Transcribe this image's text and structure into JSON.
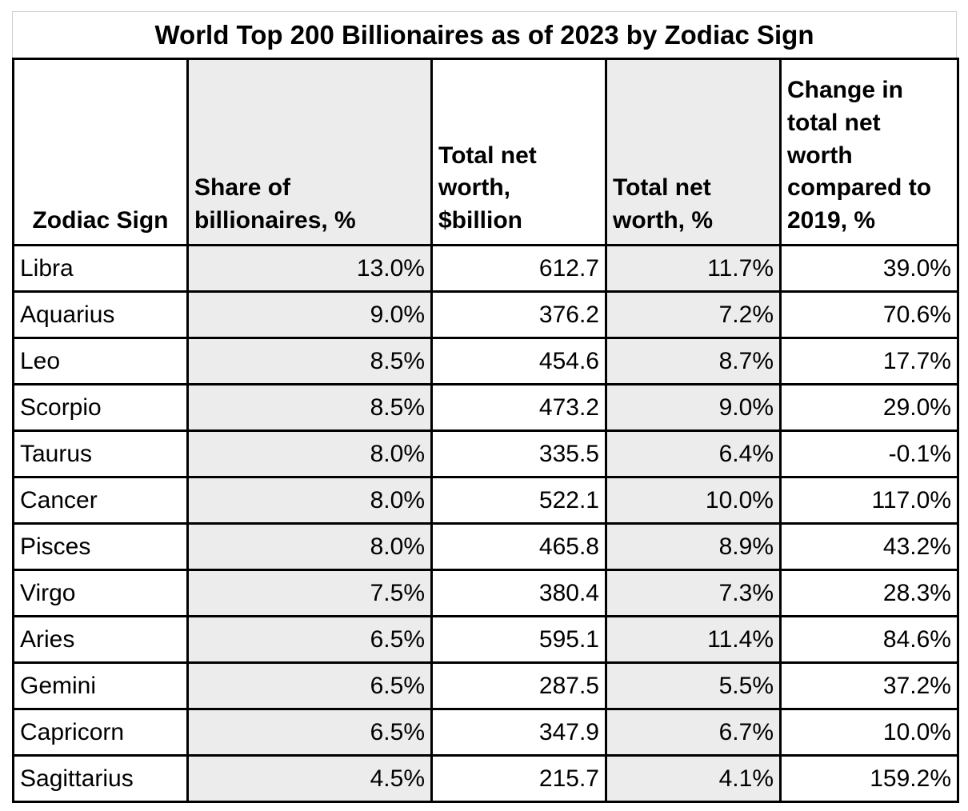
{
  "title": "World Top 200 Billionaires as of 2023 by Zodiac Sign",
  "colors": {
    "shaded_column_background": "#ececec",
    "table_border": "#000000",
    "caption_border": "#cfcfcf",
    "text": "#000000"
  },
  "table": {
    "columns": [
      {
        "id": "zodiac-sign",
        "label": "Zodiac Sign",
        "shaded": false,
        "align": "center"
      },
      {
        "id": "share-of-billionaires",
        "label": "Share of\nbillionaires, %",
        "shaded": true,
        "align": "left"
      },
      {
        "id": "total-net-worth-billion",
        "label": "Total net\nworth,\n$billion",
        "shaded": false,
        "align": "left"
      },
      {
        "id": "total-net-worth-pct",
        "label": "Total net\nworth, %",
        "shaded": true,
        "align": "left"
      },
      {
        "id": "change-vs-2019",
        "label": "Change in\ntotal net\nworth\ncompared to\n2019, %",
        "shaded": false,
        "align": "left"
      }
    ],
    "rows": [
      {
        "zodiac_sign": "Libra",
        "share_of_billionaires": "13.0%",
        "total_net_worth_billion": "612.7",
        "total_net_worth_pct": "11.7%",
        "change_vs_2019_pct": "39.0%"
      },
      {
        "zodiac_sign": "Aquarius",
        "share_of_billionaires": "9.0%",
        "total_net_worth_billion": "376.2",
        "total_net_worth_pct": "7.2%",
        "change_vs_2019_pct": "70.6%"
      },
      {
        "zodiac_sign": "Leo",
        "share_of_billionaires": "8.5%",
        "total_net_worth_billion": "454.6",
        "total_net_worth_pct": "8.7%",
        "change_vs_2019_pct": "17.7%"
      },
      {
        "zodiac_sign": "Scorpio",
        "share_of_billionaires": "8.5%",
        "total_net_worth_billion": "473.2",
        "total_net_worth_pct": "9.0%",
        "change_vs_2019_pct": "29.0%"
      },
      {
        "zodiac_sign": "Taurus",
        "share_of_billionaires": "8.0%",
        "total_net_worth_billion": "335.5",
        "total_net_worth_pct": "6.4%",
        "change_vs_2019_pct": "-0.1%"
      },
      {
        "zodiac_sign": "Cancer",
        "share_of_billionaires": "8.0%",
        "total_net_worth_billion": "522.1",
        "total_net_worth_pct": "10.0%",
        "change_vs_2019_pct": "117.0%"
      },
      {
        "zodiac_sign": "Pisces",
        "share_of_billionaires": "8.0%",
        "total_net_worth_billion": "465.8",
        "total_net_worth_pct": "8.9%",
        "change_vs_2019_pct": "43.2%"
      },
      {
        "zodiac_sign": "Virgo",
        "share_of_billionaires": "7.5%",
        "total_net_worth_billion": "380.4",
        "total_net_worth_pct": "7.3%",
        "change_vs_2019_pct": "28.3%"
      },
      {
        "zodiac_sign": "Aries",
        "share_of_billionaires": "6.5%",
        "total_net_worth_billion": "595.1",
        "total_net_worth_pct": "11.4%",
        "change_vs_2019_pct": "84.6%"
      },
      {
        "zodiac_sign": "Gemini",
        "share_of_billionaires": "6.5%",
        "total_net_worth_billion": "287.5",
        "total_net_worth_pct": "5.5%",
        "change_vs_2019_pct": "37.2%"
      },
      {
        "zodiac_sign": "Capricorn",
        "share_of_billionaires": "6.5%",
        "total_net_worth_billion": "347.9",
        "total_net_worth_pct": "6.7%",
        "change_vs_2019_pct": "10.0%"
      },
      {
        "zodiac_sign": "Sagittarius",
        "share_of_billionaires": "4.5%",
        "total_net_worth_billion": "215.7",
        "total_net_worth_pct": "4.1%",
        "change_vs_2019_pct": "159.2%"
      }
    ]
  },
  "chart_data": {
    "type": "table",
    "title": "World Top 200 Billionaires as of 2023 by Zodiac Sign",
    "columns": [
      "Zodiac Sign",
      "Share of billionaires, %",
      "Total net worth, $billion",
      "Total net worth, %",
      "Change in total net worth compared to 2019, %"
    ],
    "rows": [
      [
        "Libra",
        13.0,
        612.7,
        11.7,
        39.0
      ],
      [
        "Aquarius",
        9.0,
        376.2,
        7.2,
        70.6
      ],
      [
        "Leo",
        8.5,
        454.6,
        8.7,
        17.7
      ],
      [
        "Scorpio",
        8.5,
        473.2,
        9.0,
        29.0
      ],
      [
        "Taurus",
        8.0,
        335.5,
        6.4,
        -0.1
      ],
      [
        "Cancer",
        8.0,
        522.1,
        10.0,
        117.0
      ],
      [
        "Pisces",
        8.0,
        465.8,
        8.9,
        43.2
      ],
      [
        "Virgo",
        7.5,
        380.4,
        7.3,
        28.3
      ],
      [
        "Aries",
        6.5,
        595.1,
        11.4,
        84.6
      ],
      [
        "Gemini",
        6.5,
        287.5,
        5.5,
        37.2
      ],
      [
        "Capricorn",
        6.5,
        347.9,
        6.7,
        10.0
      ],
      [
        "Sagittarius",
        4.5,
        215.7,
        4.1,
        159.2
      ]
    ]
  }
}
